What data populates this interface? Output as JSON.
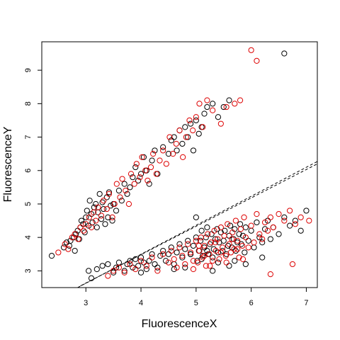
{
  "chart_data": {
    "type": "scatter",
    "title": "",
    "xlabel": "FluorescenceX",
    "ylabel": "FluorescenceY",
    "xlim": [
      2.2,
      7.2
    ],
    "ylim": [
      2.5,
      9.85
    ],
    "xticks": [
      3,
      4,
      5,
      6,
      7
    ],
    "yticks": [
      3,
      4,
      5,
      6,
      7,
      8,
      9
    ],
    "grid": false,
    "legend": "none",
    "marker": "open-circle",
    "colors": {
      "black": "#000000",
      "red": "#dd0000"
    },
    "series": [
      {
        "color": "black",
        "x": [
          2.38,
          2.6,
          2.65,
          2.7,
          2.72,
          2.78,
          2.8,
          2.82,
          2.85,
          2.88,
          2.9,
          2.92,
          2.95,
          2.98,
          3.0,
          3.02,
          3.05,
          3.07,
          3.1,
          3.12,
          3.15,
          3.18,
          3.2,
          3.22,
          3.25,
          3.28,
          3.3,
          3.32,
          3.35,
          3.38,
          3.4,
          3.42,
          3.45,
          3.48,
          3.5,
          3.55,
          3.6,
          3.65,
          3.7,
          3.75,
          3.8,
          3.85,
          3.9,
          3.95,
          4.0,
          4.05,
          4.1,
          4.15,
          4.2,
          4.25,
          4.3,
          4.4,
          4.5,
          4.55,
          4.6,
          4.65,
          4.7,
          4.75,
          4.8,
          4.85,
          4.9,
          4.95,
          5.0,
          5.05,
          5.1,
          5.15,
          5.2,
          5.3,
          5.4,
          5.5,
          5.6,
          6.6
        ],
        "y": [
          3.45,
          3.7,
          3.85,
          3.75,
          3.9,
          4.0,
          3.6,
          4.1,
          4.2,
          3.95,
          4.3,
          4.5,
          4.4,
          4.15,
          4.6,
          4.8,
          4.35,
          5.1,
          4.7,
          4.45,
          4.9,
          5.0,
          4.3,
          4.75,
          5.3,
          4.55,
          5.05,
          4.85,
          4.4,
          5.2,
          4.6,
          5.35,
          4.95,
          4.5,
          5.0,
          4.8,
          5.4,
          5.1,
          5.6,
          5.3,
          5.5,
          5.8,
          6.1,
          5.7,
          5.9,
          6.4,
          6.0,
          5.6,
          6.3,
          6.6,
          5.9,
          6.7,
          6.5,
          6.9,
          7.0,
          6.6,
          7.2,
          6.8,
          7.3,
          7.0,
          7.4,
          6.6,
          7.5,
          7.1,
          7.3,
          7.7,
          7.9,
          8.0,
          7.6,
          7.9,
          8.1,
          9.5
        ]
      },
      {
        "color": "red",
        "x": [
          2.5,
          2.62,
          2.68,
          2.75,
          2.8,
          2.86,
          2.9,
          2.96,
          3.0,
          3.06,
          3.1,
          3.14,
          3.18,
          3.22,
          3.28,
          3.32,
          3.38,
          3.42,
          3.48,
          3.52,
          3.56,
          3.62,
          3.66,
          3.72,
          3.78,
          3.82,
          3.88,
          3.92,
          3.98,
          4.02,
          4.08,
          4.12,
          4.18,
          4.22,
          4.28,
          4.34,
          4.4,
          4.46,
          4.52,
          4.58,
          4.64,
          4.7,
          4.76,
          4.82,
          4.88,
          4.94,
          5.0,
          5.06,
          5.12,
          5.2,
          5.3,
          5.45,
          5.55,
          5.7,
          5.8,
          6.0,
          6.1
        ],
        "y": [
          3.55,
          3.8,
          3.65,
          4.0,
          4.1,
          3.95,
          4.3,
          4.2,
          4.4,
          4.6,
          4.3,
          4.75,
          4.5,
          4.9,
          4.65,
          5.1,
          4.85,
          5.3,
          4.6,
          5.0,
          5.6,
          5.2,
          5.75,
          5.4,
          5.0,
          5.9,
          5.6,
          6.2,
          5.8,
          6.4,
          6.0,
          5.7,
          6.1,
          6.5,
          5.9,
          6.3,
          6.6,
          6.2,
          7.0,
          6.5,
          6.8,
          7.2,
          6.4,
          7.0,
          7.5,
          7.2,
          7.6,
          8.0,
          7.3,
          8.1,
          7.8,
          7.4,
          7.9,
          8.0,
          8.1,
          9.6,
          9.28
        ]
      },
      {
        "color": "black",
        "x": [
          3.05,
          3.1,
          3.2,
          3.3,
          3.4,
          3.5,
          3.55,
          3.6,
          3.7,
          3.75,
          3.8,
          3.85,
          3.9,
          3.95,
          4.0,
          4.05,
          4.1,
          4.15,
          4.2,
          4.25,
          4.3,
          4.35,
          4.4,
          4.45,
          4.5,
          4.55,
          4.6,
          4.65,
          4.7,
          4.75,
          4.8,
          4.85,
          4.9,
          4.95,
          5.0,
          5.02,
          5.05,
          5.08,
          5.1,
          5.12,
          5.15,
          5.18,
          5.2,
          5.22,
          5.25,
          5.28,
          5.3,
          5.32,
          5.35,
          5.38,
          5.4,
          5.42,
          5.45,
          5.48,
          5.5,
          5.52,
          5.55,
          5.58,
          5.6,
          5.62,
          5.65,
          5.68,
          5.7,
          5.72,
          5.75,
          5.78,
          5.8,
          5.82,
          5.85,
          5.88,
          5.9,
          5.95,
          6.0,
          6.05,
          6.1,
          6.15,
          6.2,
          6.25,
          6.3,
          6.35,
          6.4,
          6.5,
          6.6,
          6.7,
          6.8,
          6.9,
          7.0,
          4.0,
          4.6,
          4.8,
          5.0,
          5.3,
          5.6,
          5.9,
          6.2,
          5.1,
          5.4,
          5.7,
          4.9,
          5.2
        ],
        "y": [
          3.0,
          2.78,
          3.05,
          3.15,
          3.2,
          2.95,
          3.1,
          3.25,
          3.0,
          3.2,
          3.3,
          3.1,
          3.35,
          3.15,
          3.4,
          3.25,
          3.05,
          3.3,
          3.5,
          3.2,
          3.1,
          3.45,
          3.6,
          3.3,
          3.5,
          3.7,
          3.2,
          3.55,
          3.8,
          3.4,
          3.65,
          3.9,
          3.5,
          3.75,
          4.0,
          3.3,
          3.6,
          3.9,
          4.2,
          3.45,
          3.7,
          4.0,
          4.3,
          3.5,
          3.8,
          4.1,
          3.4,
          3.65,
          3.95,
          4.25,
          3.55,
          3.85,
          4.15,
          3.6,
          3.9,
          4.2,
          3.5,
          3.75,
          4.05,
          4.35,
          3.7,
          3.95,
          4.25,
          3.6,
          3.85,
          4.1,
          4.4,
          3.8,
          4.05,
          3.55,
          4.3,
          3.9,
          4.2,
          3.7,
          4.45,
          4.0,
          3.85,
          4.25,
          4.5,
          3.95,
          4.3,
          4.1,
          4.6,
          4.35,
          4.5,
          4.2,
          4.8,
          2.95,
          3.05,
          3.1,
          4.6,
          3.0,
          3.15,
          3.2,
          3.4,
          3.35,
          3.25,
          3.3,
          3.5,
          3.6
        ]
      },
      {
        "color": "red",
        "x": [
          3.4,
          3.5,
          3.6,
          3.7,
          3.8,
          3.9,
          4.0,
          4.1,
          4.2,
          4.3,
          4.4,
          4.5,
          4.55,
          4.6,
          4.65,
          4.7,
          4.75,
          4.8,
          4.85,
          4.9,
          4.95,
          5.0,
          5.03,
          5.06,
          5.09,
          5.12,
          5.15,
          5.18,
          5.21,
          5.24,
          5.27,
          5.3,
          5.33,
          5.36,
          5.39,
          5.42,
          5.45,
          5.48,
          5.51,
          5.54,
          5.57,
          5.6,
          5.63,
          5.66,
          5.69,
          5.72,
          5.75,
          5.78,
          5.81,
          5.84,
          5.87,
          5.9,
          5.95,
          6.0,
          6.05,
          6.1,
          6.15,
          6.2,
          6.25,
          6.3,
          6.35,
          6.4,
          6.5,
          6.6,
          6.7,
          6.8,
          6.9,
          7.05,
          6.35,
          6.75,
          4.95,
          5.25,
          5.55,
          5.85,
          5.15,
          5.45,
          5.75,
          5.05,
          5.35,
          5.65
        ],
        "y": [
          2.85,
          3.0,
          3.1,
          2.95,
          3.2,
          3.05,
          3.3,
          3.15,
          3.4,
          3.0,
          3.5,
          3.25,
          3.6,
          3.35,
          3.1,
          3.7,
          3.45,
          3.2,
          3.8,
          3.55,
          3.3,
          3.9,
          3.25,
          3.6,
          4.0,
          3.4,
          3.75,
          3.15,
          4.1,
          3.5,
          3.85,
          3.3,
          4.2,
          3.6,
          3.95,
          3.35,
          4.3,
          3.7,
          4.05,
          3.45,
          4.4,
          3.8,
          3.55,
          4.15,
          3.65,
          4.5,
          3.9,
          3.4,
          4.25,
          3.75,
          4.6,
          4.0,
          3.7,
          4.35,
          3.85,
          4.7,
          4.1,
          3.95,
          4.45,
          4.2,
          4.6,
          4.3,
          4.7,
          4.5,
          4.8,
          4.4,
          4.6,
          4.5,
          2.9,
          3.2,
          3.05,
          3.15,
          3.25,
          3.35,
          3.45,
          3.55,
          3.65,
          3.75,
          3.85,
          3.95
        ]
      }
    ],
    "reference_lines": [
      {
        "style": "dashed",
        "x": [
          2.9,
          7.2
        ],
        "y": [
          2.55,
          6.2
        ]
      },
      {
        "style": "dashed",
        "x": [
          2.85,
          7.2
        ],
        "y": [
          2.5,
          6.27
        ]
      }
    ]
  }
}
